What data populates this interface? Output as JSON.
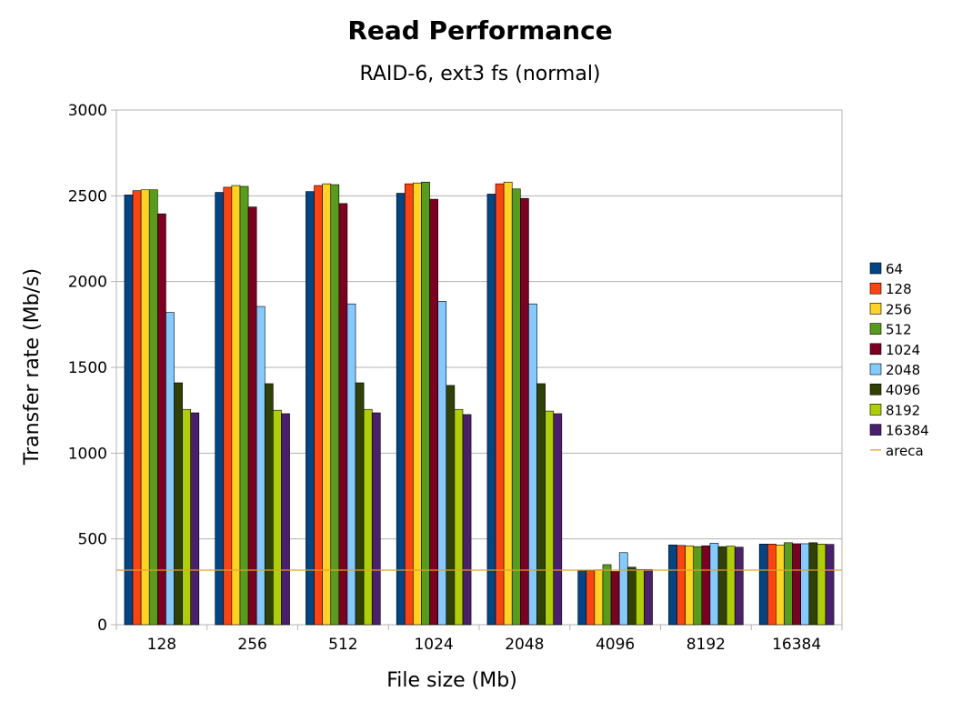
{
  "chart_data": {
    "type": "bar",
    "title": "Read Performance",
    "subtitle": "RAID-6, ext3 fs (normal)",
    "xlabel": "File size (Mb)",
    "ylabel": "Transfer rate (Mb/s)",
    "ylim": [
      0,
      3000
    ],
    "yticks": [
      "0",
      "500",
      "1000",
      "1500",
      "2000",
      "2500",
      "3000"
    ],
    "grid": true,
    "legend_position": "right",
    "categories": [
      "128",
      "256",
      "512",
      "1024",
      "2048",
      "4096",
      "8192",
      "16384"
    ],
    "series": [
      {
        "name": "64",
        "color": "#004586",
        "values": [
          2505,
          2520,
          2525,
          2515,
          2510,
          315,
          465,
          470
        ]
      },
      {
        "name": "128",
        "color": "#ff420e",
        "values": [
          2530,
          2550,
          2560,
          2570,
          2570,
          315,
          462,
          470
        ]
      },
      {
        "name": "256",
        "color": "#ffd320",
        "values": [
          2535,
          2560,
          2570,
          2575,
          2580,
          320,
          460,
          465
        ]
      },
      {
        "name": "512",
        "color": "#579d1c",
        "values": [
          2535,
          2555,
          2565,
          2580,
          2540,
          350,
          455,
          478
        ]
      },
      {
        "name": "1024",
        "color": "#7e0021",
        "values": [
          2395,
          2435,
          2455,
          2480,
          2485,
          310,
          460,
          472
        ]
      },
      {
        "name": "2048",
        "color": "#83caff",
        "values": [
          1820,
          1855,
          1870,
          1885,
          1870,
          420,
          475,
          472
        ]
      },
      {
        "name": "4096",
        "color": "#314004",
        "values": [
          1410,
          1405,
          1410,
          1395,
          1405,
          335,
          455,
          478
        ]
      },
      {
        "name": "8192",
        "color": "#aecf00",
        "values": [
          1255,
          1250,
          1255,
          1255,
          1245,
          322,
          458,
          470
        ]
      },
      {
        "name": "16384",
        "color": "#4b1f6f",
        "values": [
          1235,
          1230,
          1235,
          1225,
          1230,
          322,
          452,
          468
        ]
      }
    ],
    "reference_line": {
      "name": "areca",
      "color": "#e0a030",
      "value": 318
    }
  }
}
